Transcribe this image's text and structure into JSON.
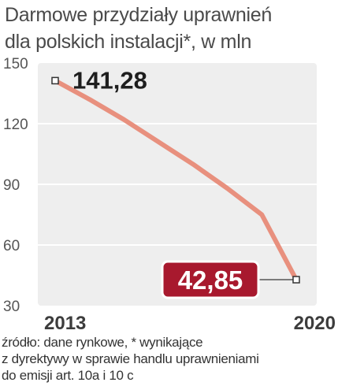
{
  "title_lines": [
    "Darmowe przydziały uprawnień",
    "dla polskich instalacji*, w mln"
  ],
  "source_lines": [
    "źródło: dane rynkowe, * wynikające",
    "z dyrektywy w sprawie handlu uprawnieniami",
    "do emisji art. 10a i 10 c"
  ],
  "colors": {
    "line": "#e8907e",
    "plot_bg": "#eeeeee",
    "grid": "#ffffff",
    "label_bg": "#a8192e",
    "label_border": "#ffffff",
    "text": "#3c3c3c"
  },
  "chart_data": {
    "type": "line",
    "title": "Darmowe przydziały uprawnień dla polskich instalacji*, w mln",
    "xlabel": "",
    "ylabel": "",
    "x": [
      2013,
      2014,
      2015,
      2016,
      2017,
      2018,
      2019,
      2020
    ],
    "values": [
      141.28,
      132,
      122,
      111,
      100,
      88,
      75,
      42.85
    ],
    "x_tick_labels": [
      "2013",
      "2020"
    ],
    "ylim": [
      30,
      150
    ],
    "yticks": [
      30,
      60,
      90,
      120,
      150
    ],
    "grid": true,
    "annotations": [
      {
        "x": 2013,
        "y": 141.28,
        "text": "141,28",
        "style": "bold"
      },
      {
        "x": 2020,
        "y": 42.85,
        "text": "42,85",
        "style": "boxed"
      }
    ]
  }
}
